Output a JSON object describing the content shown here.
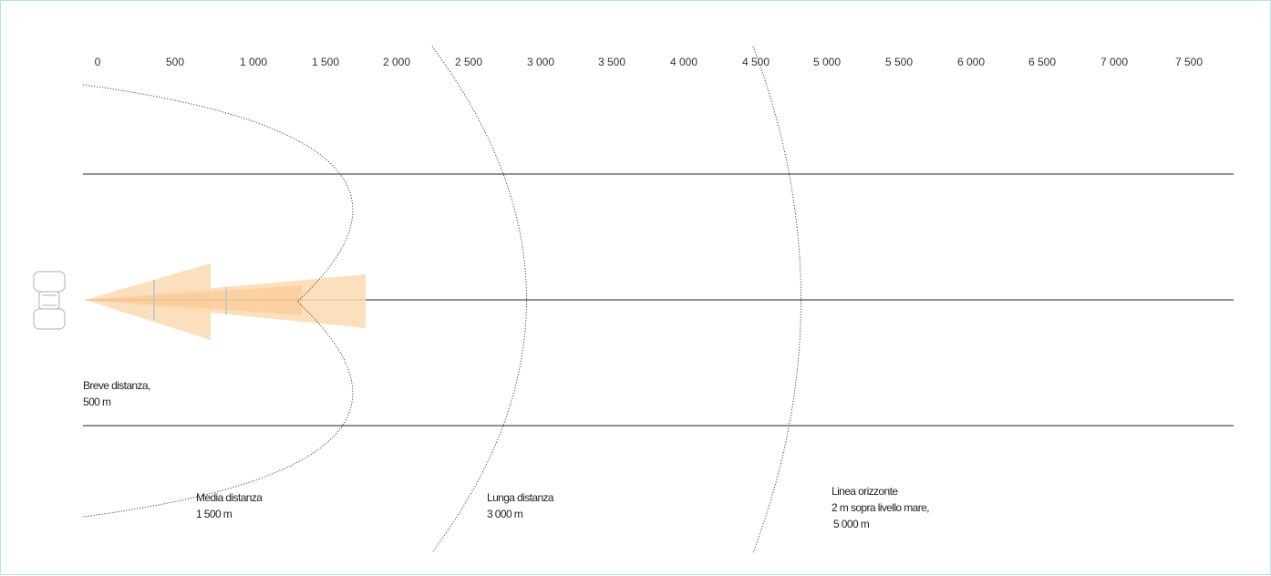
{
  "distance_scale": {
    "ticks": [
      "0",
      "500",
      "1 000",
      "1 500",
      "2 000",
      "2 500",
      "3 000",
      "3 500",
      "4 000",
      "4 500",
      "5 000",
      "5 500",
      "6 000",
      "6 500",
      "7 000",
      "7 500"
    ]
  },
  "ranges": {
    "short": {
      "label_line1": "Breve distanza,",
      "label_line2": "500 m"
    },
    "medium": {
      "label_line1": "Media distanza",
      "label_line2": "1 500 m"
    },
    "long": {
      "label_line1": "Lunga distanza",
      "label_line2": "3 000 m"
    },
    "horizon": {
      "label_line1": "Linea orizzonte",
      "label_line2": "2 m sopra livello mare,",
      "label_line3": "5 000 m"
    }
  },
  "colors": {
    "beam": "#fcd9b0",
    "beam_core": "#f9c48c",
    "frame": "#b9e0ea",
    "line": "#222222"
  },
  "icons": {
    "vehicle": "car-top-view-icon"
  }
}
